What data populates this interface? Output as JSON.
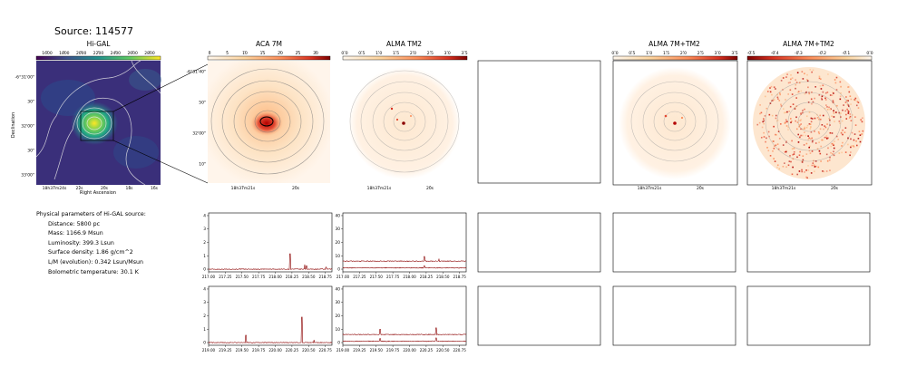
{
  "source": {
    "title": "Source: 114577"
  },
  "panels": {
    "higal": {
      "title": "Hi-GAL",
      "colorbar_ticks": [
        "1600",
        "1800",
        "2000",
        "2200",
        "2400",
        "2600",
        "2800"
      ],
      "ylabel": "Declination",
      "xlabel": "Right Ascension",
      "yticks": [
        "-6°31'00\"",
        "30\"",
        "32'00\"",
        "30\"",
        "33'00\""
      ],
      "xticks": [
        "18h37m24s",
        "22s",
        "20s",
        "18s",
        "16s"
      ]
    },
    "aca7m": {
      "title": "ACA 7M",
      "colorbar_ticks": [
        "0",
        "5",
        "10",
        "15",
        "20",
        "25",
        "30"
      ],
      "yticks": [
        "-6°31'40\"",
        "50\"",
        "32'00\"",
        "10\""
      ],
      "xticks": [
        "18h37m21s",
        "20s"
      ]
    },
    "almatm2": {
      "title": "ALMA TM2",
      "colorbar_ticks": [
        "0.0",
        "0.5",
        "1.0",
        "1.5",
        "2.0",
        "2.5",
        "3.0",
        "3.5"
      ],
      "xticks": [
        "18h37m21s",
        "20s"
      ]
    },
    "alma7mtm2": {
      "title": "ALMA 7M+TM2",
      "colorbar_ticks": [
        "0.0",
        "0.5",
        "1.0",
        "1.5",
        "2.0",
        "2.5",
        "3.0",
        "3.5"
      ],
      "xticks": [
        "18h37m21s",
        "20s"
      ]
    },
    "alma7mtm2b": {
      "title": "ALMA 7M+TM2",
      "colorbar_ticks": [
        "-0.5",
        "-0.4",
        "-0.3",
        "-0.2",
        "-0.1",
        "0.0"
      ],
      "xticks": [
        "18h37m21s",
        "20s"
      ]
    }
  },
  "params": {
    "header": "Physical parameters of Hi-GAL source:",
    "items": [
      "Distance: 5800 pc",
      "Mass: 1166.9 Msun",
      "Luminosity: 399.3 Lsun",
      "Surface density: 1.86 g/cm^2",
      "L/M (evolution): 0.342 Lsun/Msun",
      "Bolometric temperature: 30.1 K"
    ]
  },
  "chart_data": [
    {
      "type": "line",
      "panel": "ACA 7M spectrum, upper band",
      "xticks": [
        "217.00",
        "217.25",
        "217.50",
        "217.75",
        "218.00",
        "218.25",
        "218.50",
        "218.75"
      ],
      "yticks": [
        "0",
        "1",
        "2",
        "3",
        "4"
      ],
      "xlim": [
        217.0,
        218.85
      ],
      "ylim": [
        -0.2,
        4.2
      ],
      "series": [
        {
          "color": "#8b0000",
          "baseline": 0.0,
          "peaks": [
            [
              218.22,
              1.15
            ],
            [
              218.44,
              0.35
            ],
            [
              218.47,
              0.25
            ],
            [
              218.76,
              0.15
            ]
          ]
        }
      ]
    },
    {
      "type": "line",
      "panel": "ALMA TM2 spectrum, upper band",
      "xticks": [
        "217.00",
        "217.25",
        "217.50",
        "217.75",
        "218.00",
        "218.25",
        "218.50",
        "218.75"
      ],
      "yticks": [
        "0",
        "10",
        "20",
        "30",
        "40"
      ],
      "xlim": [
        217.0,
        218.85
      ],
      "ylim": [
        -2,
        42
      ],
      "series": [
        {
          "color": "#8b0000",
          "baseline": 6.0,
          "peaks": [
            [
              218.22,
              9.5
            ],
            [
              218.44,
              7.5
            ]
          ]
        },
        {
          "color": "#8b0000",
          "baseline": 1.0,
          "peaks": [
            [
              218.22,
              2.5
            ]
          ]
        }
      ]
    },
    {
      "type": "line",
      "panel": "ACA 7M spectrum, lower band",
      "xticks": [
        "219.00",
        "219.25",
        "219.50",
        "219.75",
        "220.00",
        "220.25",
        "220.50",
        "220.75"
      ],
      "yticks": [
        "0",
        "1",
        "2",
        "3",
        "4"
      ],
      "xlim": [
        219.0,
        220.85
      ],
      "ylim": [
        -0.2,
        4.2
      ],
      "series": [
        {
          "color": "#8b0000",
          "baseline": 0.0,
          "peaks": [
            [
              219.56,
              0.55
            ],
            [
              220.4,
              1.9
            ],
            [
              220.58,
              0.2
            ]
          ]
        }
      ]
    },
    {
      "type": "line",
      "panel": "ALMA TM2 spectrum, lower band",
      "xticks": [
        "219.00",
        "219.25",
        "219.50",
        "219.75",
        "220.00",
        "220.25",
        "220.50",
        "220.75"
      ],
      "yticks": [
        "0",
        "10",
        "20",
        "30",
        "40"
      ],
      "xlim": [
        219.0,
        220.85
      ],
      "ylim": [
        -2,
        42
      ],
      "series": [
        {
          "color": "#8b0000",
          "baseline": 6.0,
          "peaks": [
            [
              219.56,
              10.0
            ],
            [
              220.4,
              11.0
            ]
          ]
        },
        {
          "color": "#8b0000",
          "baseline": 1.0,
          "peaks": [
            [
              219.56,
              3.0
            ],
            [
              220.4,
              3.5
            ]
          ]
        }
      ]
    }
  ]
}
